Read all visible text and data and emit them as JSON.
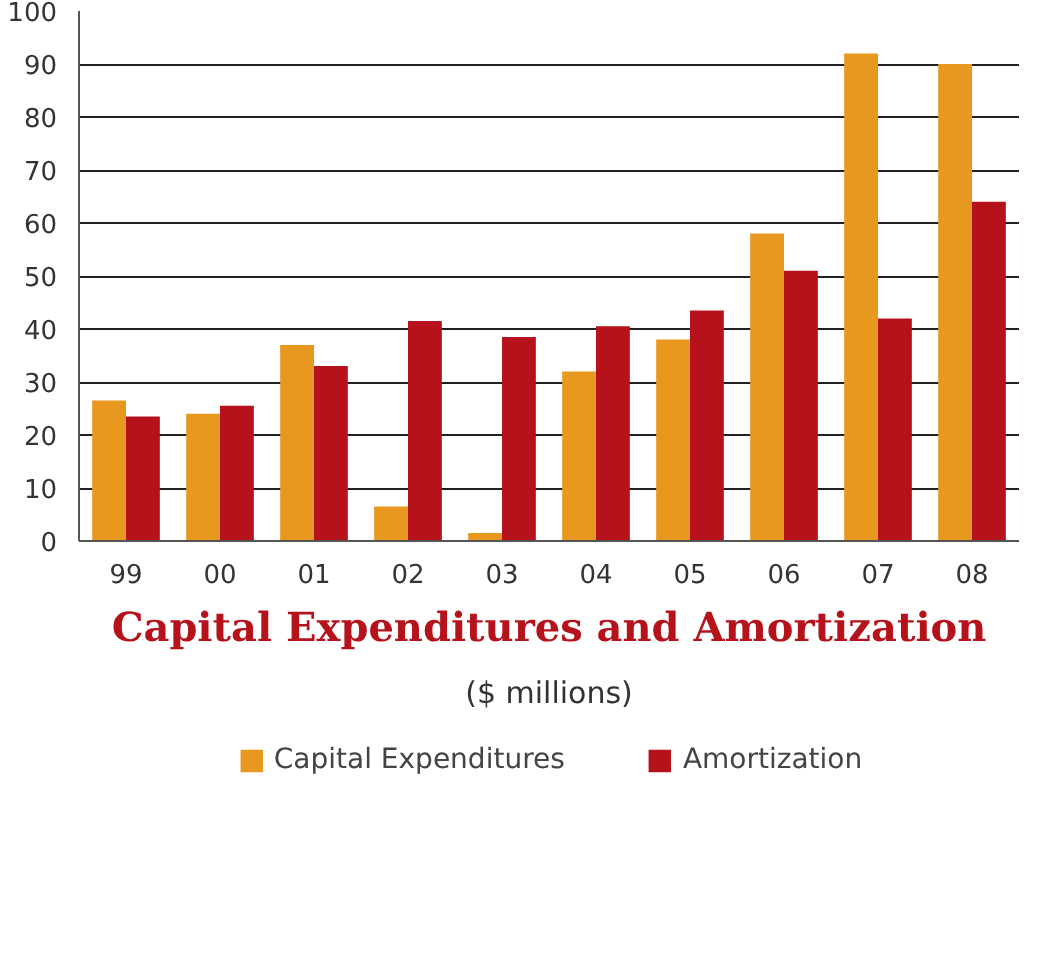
{
  "chart_data": {
    "type": "bar",
    "title": "Capital Expenditures and Amortization",
    "subtitle": "($ millions)",
    "categories": [
      "99",
      "00",
      "01",
      "02",
      "03",
      "04",
      "05",
      "06",
      "07",
      "08"
    ],
    "series": [
      {
        "name": "Capital Expenditures",
        "color": "#e8981e",
        "values": [
          26.5,
          24,
          37,
          6.5,
          1.5,
          32,
          38,
          58,
          92,
          90
        ]
      },
      {
        "name": "Amortization",
        "color": "#b5121b",
        "values": [
          23.5,
          25.5,
          33,
          41.5,
          38.5,
          40.5,
          43.5,
          51,
          42,
          64
        ]
      }
    ],
    "ylim": [
      0,
      100
    ],
    "yticks": [
      0,
      10,
      20,
      30,
      40,
      50,
      60,
      70,
      80,
      90,
      100
    ],
    "grid": "y",
    "legend": "bottom"
  }
}
